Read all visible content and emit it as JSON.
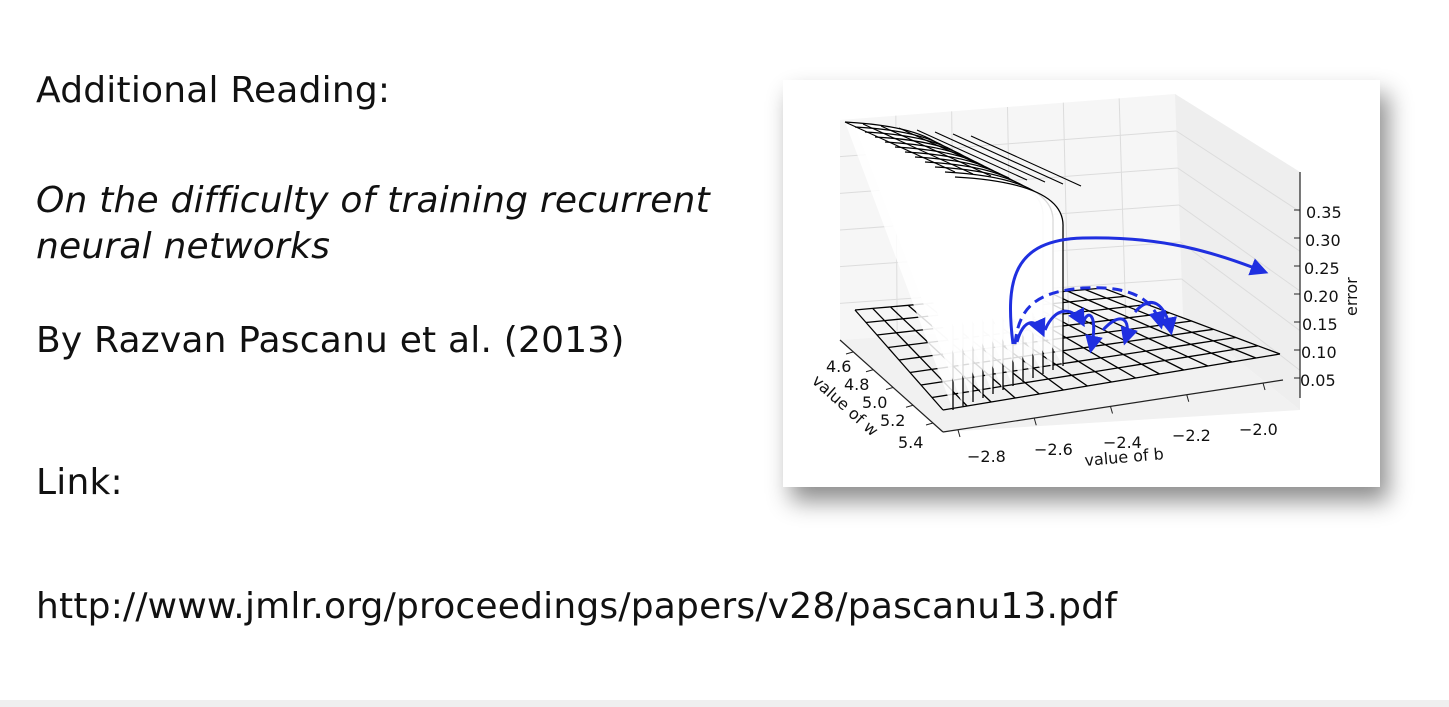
{
  "slide": {
    "heading": "Additional Reading:",
    "paper_title": "On the difficulty of training recurrent neural networks",
    "authors": "By Razvan Pascanu et al. (2013)",
    "link_label": "Link:",
    "link_url": "http://www.jmlr.org/proceedings/papers/v28/pascanu13.pdf"
  },
  "figure": {
    "chart_data": {
      "type": "surface",
      "xlabel": "value of b",
      "ylabel": "value of w",
      "zlabel": "error",
      "x_ticks": [
        "−2.8",
        "−2.6",
        "−2.4",
        "−2.2",
        "−2.0"
      ],
      "y_ticks": [
        "4.6",
        "4.8",
        "5.0",
        "5.2",
        "5.4"
      ],
      "z_ticks": [
        "0.05",
        "0.10",
        "0.15",
        "0.20",
        "0.25",
        "0.30",
        "0.35"
      ],
      "surface_color": "#000000",
      "trajectory_color": "#1f2fe0"
    }
  }
}
